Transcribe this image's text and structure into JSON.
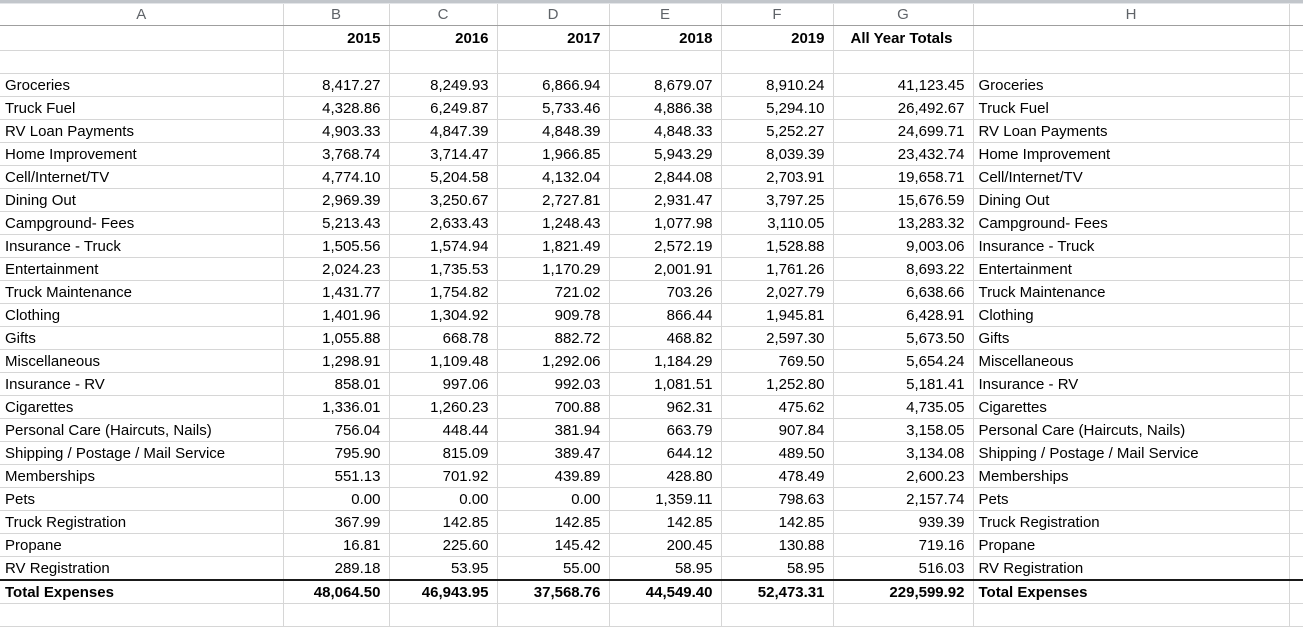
{
  "sheet": {
    "column_letters": [
      "A",
      "B",
      "C",
      "D",
      "E",
      "F",
      "G",
      "H"
    ],
    "header": {
      "years": [
        "2015",
        "2016",
        "2017",
        "2018",
        "2019"
      ],
      "totals_label": "All Year Totals"
    },
    "rows": [
      {
        "category": "Groceries",
        "values": [
          "8,417.27",
          "8,249.93",
          "6,866.94",
          "8,679.07",
          "8,910.24"
        ],
        "total": "41,123.45"
      },
      {
        "category": "Truck Fuel",
        "values": [
          "4,328.86",
          "6,249.87",
          "5,733.46",
          "4,886.38",
          "5,294.10"
        ],
        "total": "26,492.67"
      },
      {
        "category": "RV Loan Payments",
        "values": [
          "4,903.33",
          "4,847.39",
          "4,848.39",
          "4,848.33",
          "5,252.27"
        ],
        "total": "24,699.71"
      },
      {
        "category": "Home Improvement",
        "values": [
          "3,768.74",
          "3,714.47",
          "1,966.85",
          "5,943.29",
          "8,039.39"
        ],
        "total": "23,432.74"
      },
      {
        "category": "Cell/Internet/TV",
        "values": [
          "4,774.10",
          "5,204.58",
          "4,132.04",
          "2,844.08",
          "2,703.91"
        ],
        "total": "19,658.71"
      },
      {
        "category": "Dining Out",
        "values": [
          "2,969.39",
          "3,250.67",
          "2,727.81",
          "2,931.47",
          "3,797.25"
        ],
        "total": "15,676.59"
      },
      {
        "category": "Campground- Fees",
        "values": [
          "5,213.43",
          "2,633.43",
          "1,248.43",
          "1,077.98",
          "3,110.05"
        ],
        "total": "13,283.32"
      },
      {
        "category": "Insurance - Truck",
        "values": [
          "1,505.56",
          "1,574.94",
          "1,821.49",
          "2,572.19",
          "1,528.88"
        ],
        "total": "9,003.06"
      },
      {
        "category": "Entertainment",
        "values": [
          "2,024.23",
          "1,735.53",
          "1,170.29",
          "2,001.91",
          "1,761.26"
        ],
        "total": "8,693.22"
      },
      {
        "category": "Truck Maintenance",
        "values": [
          "1,431.77",
          "1,754.82",
          "721.02",
          "703.26",
          "2,027.79"
        ],
        "total": "6,638.66"
      },
      {
        "category": "Clothing",
        "values": [
          "1,401.96",
          "1,304.92",
          "909.78",
          "866.44",
          "1,945.81"
        ],
        "total": "6,428.91"
      },
      {
        "category": "Gifts",
        "values": [
          "1,055.88",
          "668.78",
          "882.72",
          "468.82",
          "2,597.30"
        ],
        "total": "5,673.50"
      },
      {
        "category": "Miscellaneous",
        "values": [
          "1,298.91",
          "1,109.48",
          "1,292.06",
          "1,184.29",
          "769.50"
        ],
        "total": "5,654.24"
      },
      {
        "category": "Insurance - RV",
        "values": [
          "858.01",
          "997.06",
          "992.03",
          "1,081.51",
          "1,252.80"
        ],
        "total": "5,181.41"
      },
      {
        "category": "Cigarettes",
        "values": [
          "1,336.01",
          "1,260.23",
          "700.88",
          "962.31",
          "475.62"
        ],
        "total": "4,735.05"
      },
      {
        "category": "Personal Care (Haircuts, Nails)",
        "values": [
          "756.04",
          "448.44",
          "381.94",
          "663.79",
          "907.84"
        ],
        "total": "3,158.05"
      },
      {
        "category": "Shipping / Postage / Mail Service",
        "values": [
          "795.90",
          "815.09",
          "389.47",
          "644.12",
          "489.50"
        ],
        "total": "3,134.08"
      },
      {
        "category": "Memberships",
        "values": [
          "551.13",
          "701.92",
          "439.89",
          "428.80",
          "478.49"
        ],
        "total": "2,600.23"
      },
      {
        "category": "Pets",
        "values": [
          "0.00",
          "0.00",
          "0.00",
          "1,359.11",
          "798.63"
        ],
        "total": "2,157.74"
      },
      {
        "category": "Truck Registration",
        "values": [
          "367.99",
          "142.85",
          "142.85",
          "142.85",
          "142.85"
        ],
        "total": "939.39"
      },
      {
        "category": "Propane",
        "values": [
          "16.81",
          "225.60",
          "145.42",
          "200.45",
          "130.88"
        ],
        "total": "719.16"
      },
      {
        "category": "RV Registration",
        "values": [
          "289.18",
          "53.95",
          "55.00",
          "58.95",
          "58.95"
        ],
        "total": "516.03"
      }
    ],
    "total_row": {
      "label": "Total Expenses",
      "values": [
        "48,064.50",
        "46,943.95",
        "37,568.76",
        "44,549.40",
        "52,473.31"
      ],
      "total": "229,599.92"
    },
    "colors": {
      "gridline": "#d6d6d6",
      "column_header_border": "#9f9f9f",
      "column_header_text": "#5f6368",
      "total_border": "#1a1a1a",
      "top_strip": "#c2c6cb"
    }
  }
}
